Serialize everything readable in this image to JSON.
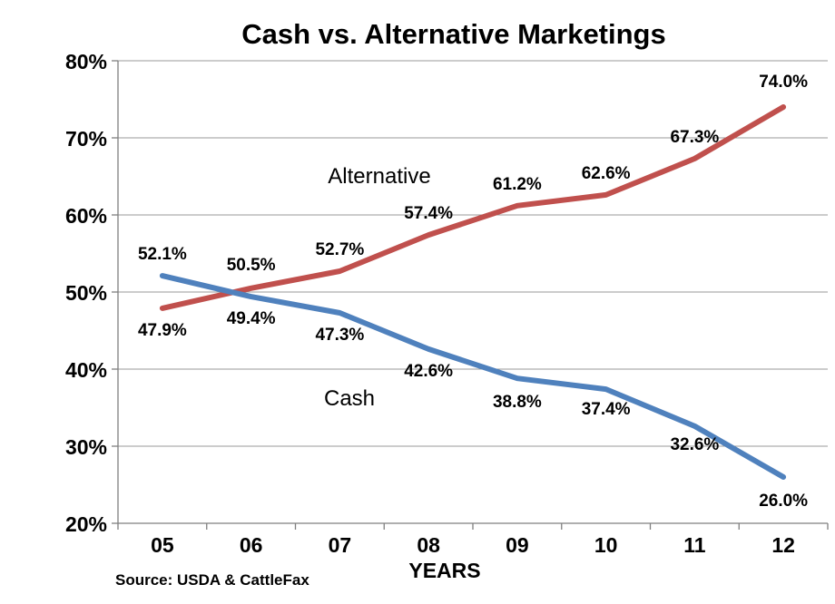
{
  "chart_data": {
    "type": "line",
    "title": "Cash vs. Alternative Marketings",
    "xlabel": "YEARS",
    "ylabel": "",
    "source": "Source: USDA & CattleFax",
    "categories": [
      "05",
      "06",
      "07",
      "08",
      "09",
      "10",
      "11",
      "12"
    ],
    "ylim": [
      20,
      80
    ],
    "yticks": [
      "20%",
      "30%",
      "40%",
      "50%",
      "60%",
      "70%",
      "80%"
    ],
    "grid": true,
    "legend": "none",
    "series": [
      {
        "name": "Alternative",
        "color": "#c0504d",
        "values": [
          47.9,
          50.5,
          52.7,
          57.4,
          61.2,
          62.6,
          67.3,
          74.0
        ],
        "labels": [
          "47.9%",
          "50.5%",
          "52.7%",
          "57.4%",
          "61.2%",
          "62.6%",
          "67.3%",
          "74.0%"
        ]
      },
      {
        "name": "Cash",
        "color": "#4f81bd",
        "values": [
          52.1,
          49.4,
          47.3,
          42.6,
          38.8,
          37.4,
          32.6,
          26.0
        ],
        "labels": [
          "52.1%",
          "49.4%",
          "47.3%",
          "42.6%",
          "38.8%",
          "37.4%",
          "32.6%",
          "26.0%"
        ]
      }
    ]
  }
}
